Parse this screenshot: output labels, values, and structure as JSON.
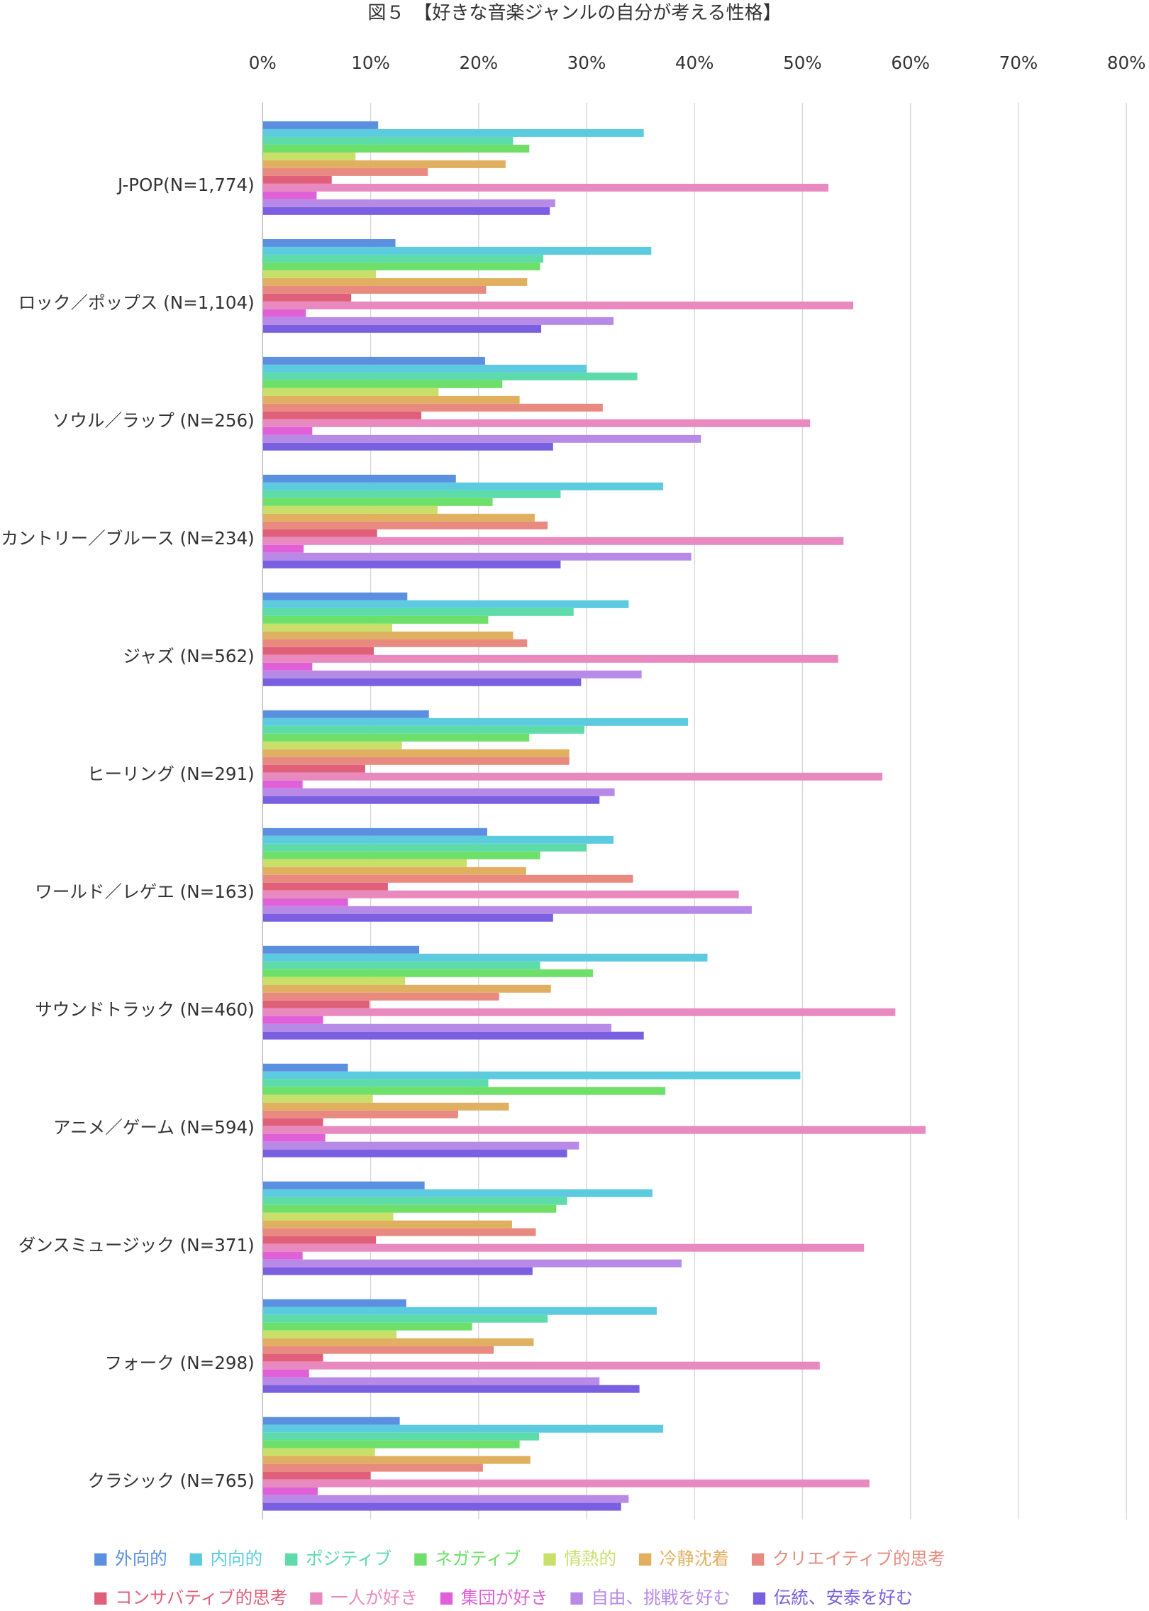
{
  "chart_data": {
    "type": "hbar",
    "title": "図５　【好きな音楽ジャンルの自分が考える性格】",
    "categories": [
      "J-POP(N=1,774)",
      "ロック／ポップス (N=1,104)",
      "ソウル／ラップ (N=256)",
      "カントリー／ブルース (N=234)",
      "ジャズ (N=562)",
      "ヒーリング (N=291)",
      "ワールド／レゲエ (N=163)",
      "サウンドトラック (N=460)",
      "アニメ／ゲーム (N=594)",
      "ダンスミュージック (N=371)",
      "フォーク (N=298)",
      "クラシック (N=765)"
    ],
    "series": [
      {
        "name": "外向的",
        "color": "#5b8fe0",
        "values": [
          10.7,
          12.3,
          20.6,
          17.9,
          13.4,
          15.4,
          20.8,
          14.5,
          7.9,
          15.0,
          13.3,
          12.7
        ]
      },
      {
        "name": "内向的",
        "color": "#5ccbe0",
        "values": [
          35.3,
          36.0,
          30.0,
          37.1,
          33.9,
          39.4,
          32.5,
          41.2,
          49.8,
          36.1,
          36.5,
          37.1
        ]
      },
      {
        "name": "ポジティブ",
        "color": "#5ddba8",
        "values": [
          23.2,
          26.0,
          34.7,
          27.6,
          28.8,
          29.8,
          30.0,
          25.7,
          20.9,
          28.2,
          26.4,
          25.6
        ]
      },
      {
        "name": "ネガティブ",
        "color": "#6ee06a",
        "values": [
          24.7,
          25.7,
          22.2,
          21.3,
          20.9,
          24.7,
          25.7,
          30.6,
          37.3,
          27.2,
          19.4,
          23.8
        ]
      },
      {
        "name": "情熱的",
        "color": "#c8e06a",
        "values": [
          8.6,
          10.5,
          16.3,
          16.2,
          12.0,
          12.9,
          18.9,
          13.2,
          10.2,
          12.1,
          12.4,
          10.4
        ]
      },
      {
        "name": "冷静沈着",
        "color": "#e0b060",
        "values": [
          22.5,
          24.5,
          23.8,
          25.2,
          23.2,
          28.4,
          24.4,
          26.7,
          22.8,
          23.1,
          25.1,
          24.8
        ]
      },
      {
        "name": "クリエイティブ的思考",
        "color": "#e88a80",
        "values": [
          15.3,
          20.7,
          31.5,
          26.4,
          24.5,
          28.4,
          34.3,
          21.9,
          18.1,
          25.3,
          21.4,
          20.4
        ]
      },
      {
        "name": "コンサバティブ的思考",
        "color": "#e0607a",
        "values": [
          6.4,
          8.2,
          14.7,
          10.6,
          10.3,
          9.5,
          11.6,
          9.9,
          5.6,
          10.5,
          5.6,
          10.0
        ]
      },
      {
        "name": "一人が好き",
        "color": "#e88ac0",
        "values": [
          52.4,
          54.7,
          50.7,
          53.8,
          53.3,
          57.4,
          44.1,
          58.6,
          61.4,
          55.7,
          51.6,
          56.2
        ]
      },
      {
        "name": "集団が好き",
        "color": "#e060d8",
        "values": [
          5.0,
          4.0,
          4.6,
          3.8,
          4.6,
          3.7,
          7.9,
          5.6,
          5.8,
          3.7,
          4.3,
          5.1
        ]
      },
      {
        "name": "自由、挑戦を好む",
        "color": "#b88ae8",
        "values": [
          27.1,
          32.5,
          40.6,
          39.7,
          35.1,
          32.6,
          45.3,
          32.3,
          29.3,
          38.8,
          31.2,
          33.9
        ]
      },
      {
        "name": "伝統、安泰を好む",
        "color": "#7a60e0",
        "values": [
          26.6,
          25.8,
          26.9,
          27.6,
          29.5,
          31.2,
          26.9,
          35.3,
          28.2,
          25.0,
          34.9,
          33.2
        ]
      }
    ],
    "xlim": [
      0,
      80
    ],
    "xticks": [
      {
        "value": 0,
        "label": "0%"
      },
      {
        "value": 10,
        "label": "10%"
      },
      {
        "value": 20,
        "label": "20%"
      },
      {
        "value": 30,
        "label": "30%"
      },
      {
        "value": 40,
        "label": "40%"
      },
      {
        "value": 50,
        "label": "50%"
      },
      {
        "value": 60,
        "label": "60%"
      },
      {
        "value": 70,
        "label": "70%"
      },
      {
        "value": 80,
        "label": "80%"
      }
    ],
    "grid": true
  }
}
